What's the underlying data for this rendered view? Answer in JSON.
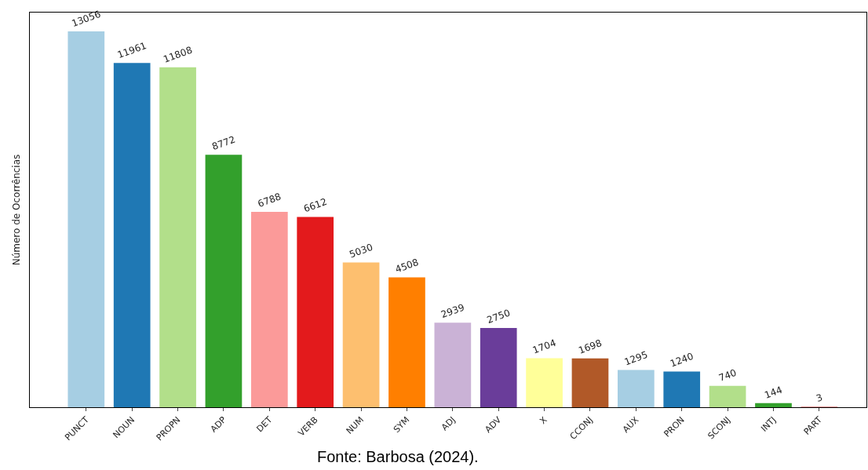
{
  "chart_data": {
    "type": "bar",
    "ylabel": "Número de Ocorrências",
    "categories": [
      "PUNCT",
      "NOUN",
      "PROPN",
      "ADP",
      "DET",
      "VERB",
      "NUM",
      "SYM",
      "ADJ",
      "ADV",
      "X",
      "CCONJ",
      "AUX",
      "PRON",
      "SCONJ",
      "INTJ",
      "PART"
    ],
    "values": [
      13056,
      11961,
      11808,
      8772,
      6788,
      6612,
      5030,
      4508,
      2939,
      2750,
      1704,
      1698,
      1295,
      1240,
      740,
      144,
      3
    ],
    "colors": [
      "#a6cee3",
      "#1f78b4",
      "#b2df8a",
      "#33a02c",
      "#fb9a99",
      "#e31a1c",
      "#fdbf6f",
      "#ff7f00",
      "#cab2d6",
      "#6a3d9a",
      "#ffff99",
      "#b15928",
      "#a6cee3",
      "#1f78b4",
      "#b2df8a",
      "#33a02c",
      "#fb9a99"
    ],
    "ylim": [
      0,
      13710
    ],
    "tick_labels": "x",
    "data_labels": true,
    "grid": false,
    "legend": false,
    "annotations": [
      "Fonte: Barbosa (2024)."
    ]
  }
}
